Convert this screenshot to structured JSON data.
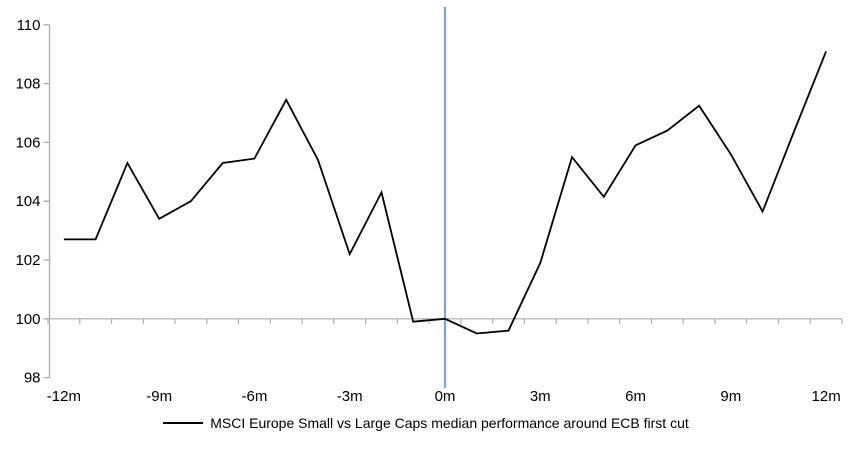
{
  "chart_data": {
    "type": "line",
    "title": "",
    "xlabel": "",
    "ylabel": "",
    "months": [
      -12,
      -11,
      -10,
      -9,
      -8,
      -7,
      -6,
      -5,
      -4,
      -3,
      -2,
      -1,
      0,
      1,
      2,
      3,
      4,
      5,
      6,
      7,
      8,
      9,
      10,
      11,
      12
    ],
    "series": [
      {
        "name": "MSCI Europe Small vs Large Caps median performance around ECB first cut",
        "color": "#000000",
        "values": [
          102.7,
          102.7,
          105.3,
          103.4,
          104.0,
          105.3,
          105.45,
          107.45,
          105.4,
          102.2,
          104.3,
          99.9,
          100.0,
          99.5,
          99.6,
          101.9,
          105.5,
          104.15,
          105.9,
          106.4,
          107.25,
          105.6,
          103.65,
          106.4,
          109.1
        ]
      }
    ],
    "x_tick_labels": [
      "-12m",
      "-9m",
      "-6m",
      "-3m",
      "0m",
      "3m",
      "6m",
      "9m",
      "12m"
    ],
    "x_tick_months": [
      -12,
      -9,
      -6,
      -3,
      0,
      3,
      6,
      9,
      12
    ],
    "y_ticks": [
      98,
      100,
      102,
      104,
      106,
      108,
      110
    ],
    "ylim": [
      98,
      110
    ],
    "xlim": [
      -12.5,
      12.5
    ],
    "baseline_value": 100,
    "event_line": {
      "month": 0,
      "color": "#7CA5D4",
      "meaning": "ECB first cut (0m)"
    },
    "grid": "off",
    "legend_position": "bottom-center",
    "axis_color": "#ACACAC",
    "text_color": "#000000",
    "background_color": "#FFFFFF"
  },
  "legend": {
    "label": "MSCI Europe Small vs Large Caps median performance around ECB first cut"
  }
}
